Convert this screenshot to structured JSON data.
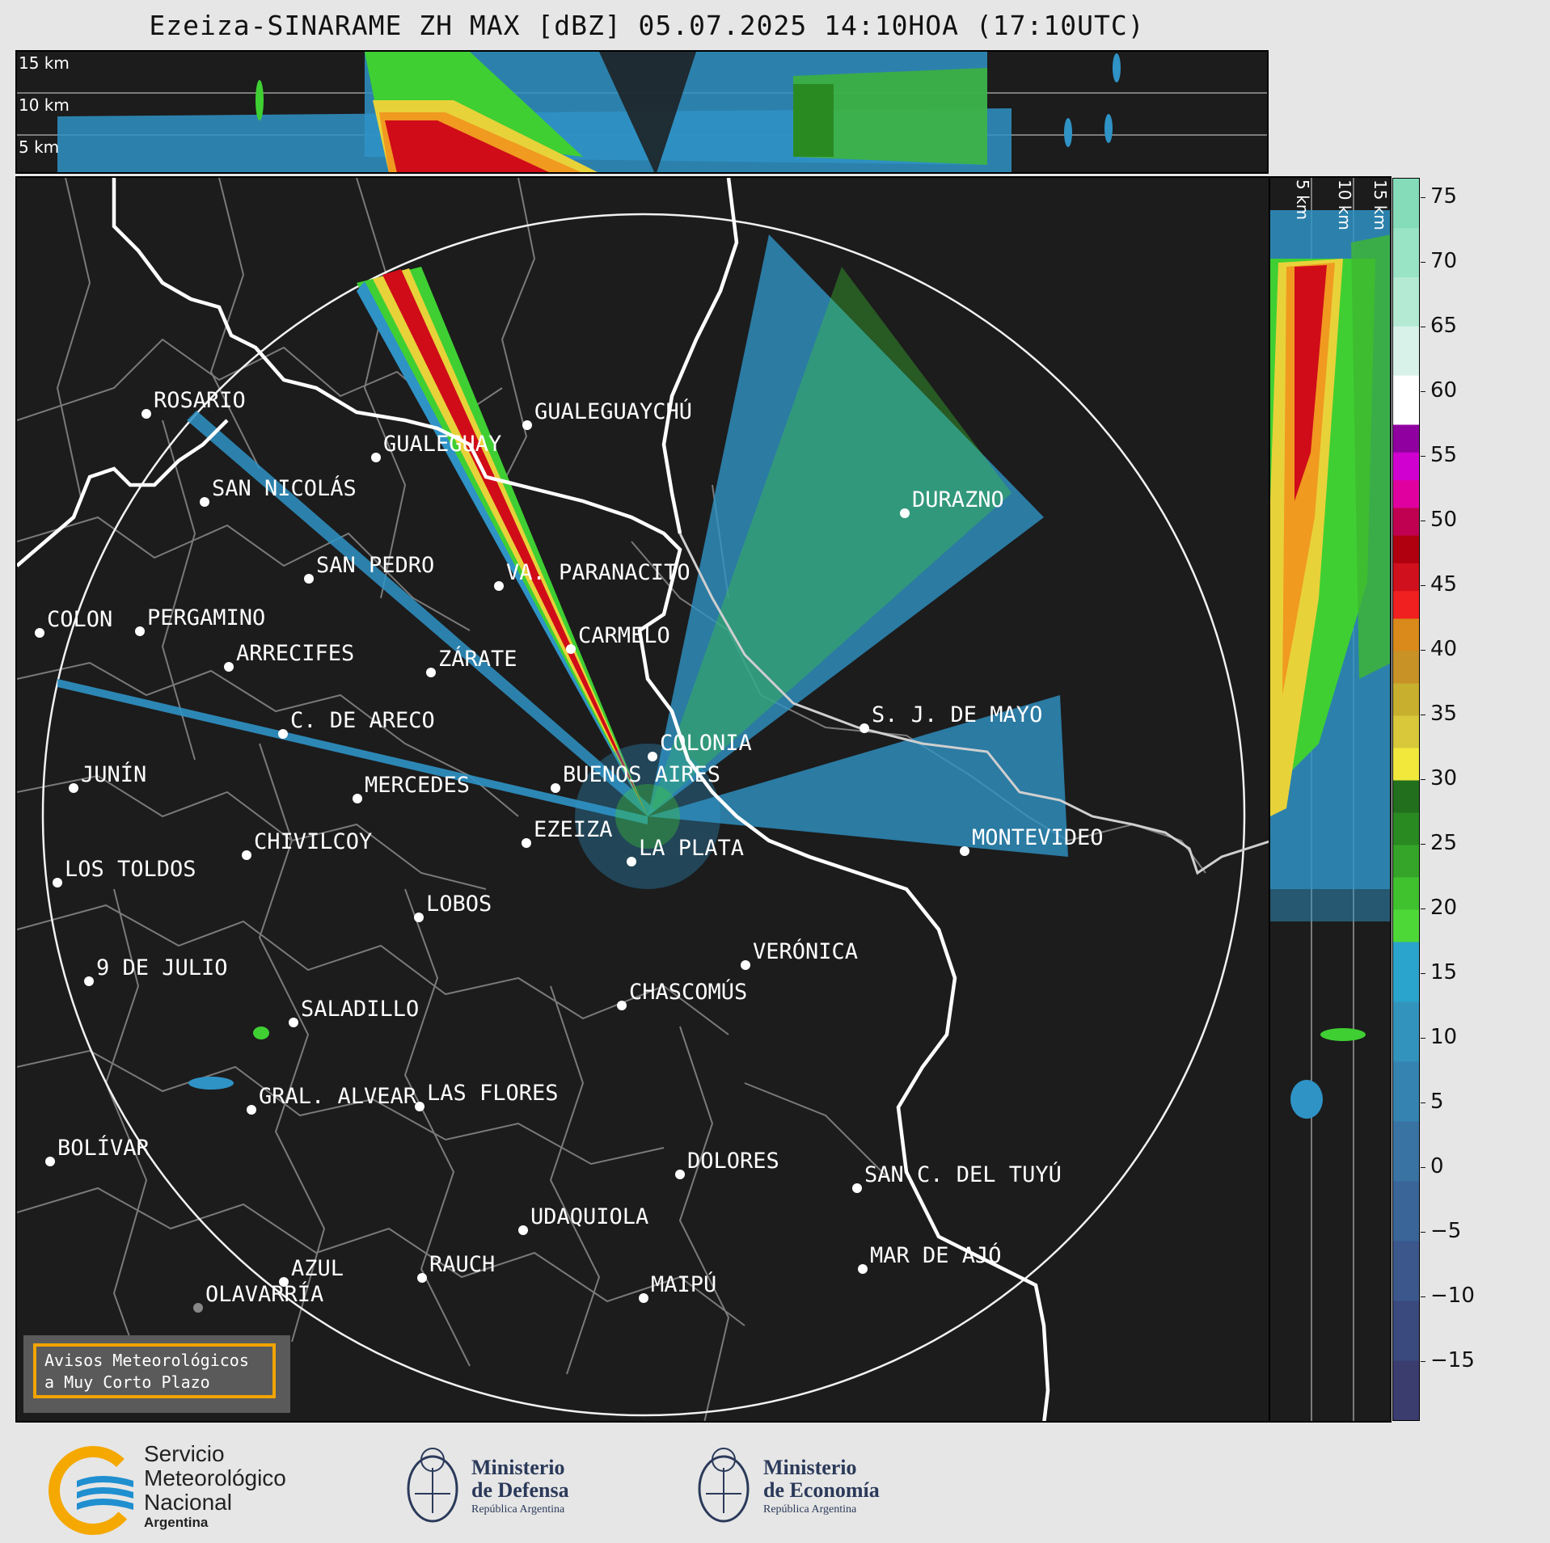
{
  "title": "Ezeiza-SINARAME ZH MAX [dBZ] 05.07.2025 14:10HOA (17:10UTC)",
  "top_panel": {
    "altitude_labels": [
      "15 km",
      "10 km",
      "5 km"
    ]
  },
  "side_panel": {
    "altitude_labels": [
      "5 km",
      "10 km",
      "15 km"
    ]
  },
  "colorbar": {
    "unit": "dBZ",
    "ticks": [
      "75",
      "70",
      "65",
      "60",
      "55",
      "50",
      "45",
      "40",
      "35",
      "30",
      "25",
      "20",
      "15",
      "10",
      "5",
      "0",
      "−5",
      "−10",
      "−15"
    ],
    "range": [
      -19.5,
      76.5
    ],
    "bands": [
      {
        "from": -19.5,
        "to": 17.5,
        "colors": [
          "#3a3d6e",
          "#3b4a7e",
          "#3b578c",
          "#3a6598",
          "#3873a4",
          "#3583b0",
          "#3293bd",
          "#2aa3cd"
        ]
      },
      {
        "from": 17.5,
        "to": 30,
        "colors": [
          "#4ed838",
          "#40c22f",
          "#34a528",
          "#2a8a22",
          "#226f1d"
        ]
      },
      {
        "from": 30,
        "to": 42.5,
        "colors": [
          "#f2e83b",
          "#d8c83a",
          "#c8b02e",
          "#c89226",
          "#d98a1a"
        ]
      },
      {
        "from": 42.5,
        "to": 57.5,
        "colors": [
          "#f02020",
          "#d0101c",
          "#b00010",
          "#c00050",
          "#e000a0",
          "#d000d0",
          "#9000a0"
        ]
      },
      {
        "from": 57.5,
        "to": 76.5,
        "colors": [
          "#ffffff",
          "#d8f2ea",
          "#b4ead4",
          "#98e4c4",
          "#84dcb8"
        ]
      }
    ]
  },
  "radar": {
    "name": "EZEIZA",
    "range_ring": true
  },
  "cities": [
    {
      "name": "ROSARIO"
    },
    {
      "name": "GUALEGUAYCHÚ"
    },
    {
      "name": "GUALEGUAY"
    },
    {
      "name": "SAN NICOLÁS"
    },
    {
      "name": "DURAZNO"
    },
    {
      "name": "SAN PEDRO"
    },
    {
      "name": "VA. PARANACITO"
    },
    {
      "name": "COLON"
    },
    {
      "name": "PERGAMINO"
    },
    {
      "name": "CARMELO"
    },
    {
      "name": "ARRECIFES"
    },
    {
      "name": "ZÁRATE"
    },
    {
      "name": "S. J. DE MAYO"
    },
    {
      "name": "C. DE ARECO"
    },
    {
      "name": "COLONIA"
    },
    {
      "name": "JUNÍN"
    },
    {
      "name": "BUENOS AIRES"
    },
    {
      "name": "MERCEDES"
    },
    {
      "name": "MONTEVIDEO"
    },
    {
      "name": "EZEIZA"
    },
    {
      "name": "CHIVILCOY"
    },
    {
      "name": "LA PLATA"
    },
    {
      "name": "LOS TOLDOS"
    },
    {
      "name": "LOBOS"
    },
    {
      "name": "VERÓNICA"
    },
    {
      "name": "9 DE JULIO"
    },
    {
      "name": "CHASCOMÚS"
    },
    {
      "name": "SALADILLO"
    },
    {
      "name": "GRAL. ALVEAR"
    },
    {
      "name": "LAS FLORES"
    },
    {
      "name": "BOLÍVAR"
    },
    {
      "name": "DOLORES"
    },
    {
      "name": "SAN C. DEL TUYÚ"
    },
    {
      "name": "UDAQUIOLA"
    },
    {
      "name": "MAR DE AJÓ"
    },
    {
      "name": "AZUL"
    },
    {
      "name": "RAUCH"
    },
    {
      "name": "MAIPÚ"
    },
    {
      "name": "OLAVARRÍA"
    }
  ],
  "aviso": {
    "line1": "Avisos Meteorológicos",
    "line2": "a Muy Corto Plazo"
  },
  "footer": {
    "smn": {
      "line1": "Servicio",
      "line2": "Meteorológico",
      "line3": "Nacional",
      "line4": "Argentina"
    },
    "defensa": {
      "line1": "Ministerio",
      "line2": "de Defensa",
      "line3": "República Argentina"
    },
    "economia": {
      "line1": "Ministerio",
      "line2": "de Economía",
      "line3": "República Argentina"
    },
    "colors": {
      "smn_blue": "#1f8fd0",
      "smn_yellow": "#f5a800",
      "ministry_navy": "#2b3a5a"
    }
  }
}
